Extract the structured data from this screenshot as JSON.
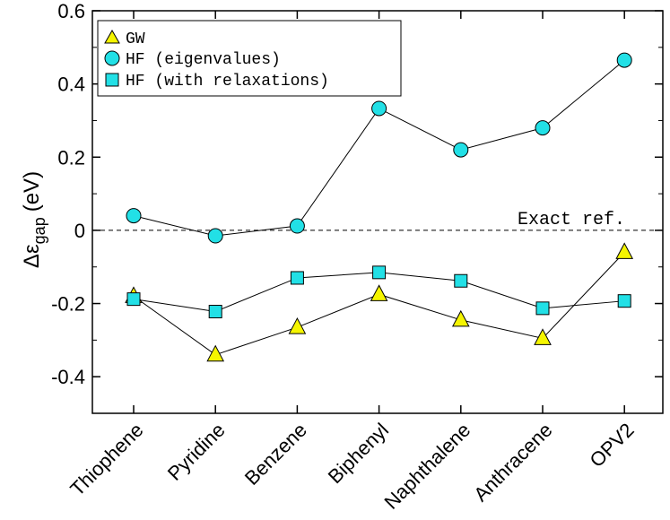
{
  "chart_data": {
    "type": "line",
    "title": "",
    "xlabel": "",
    "ylabel": "Δεgap (eV)",
    "ylabel_main": "Δε",
    "ylabel_sub": "gap",
    "ylabel_unit": "(eV)",
    "ylim": [
      -0.5,
      0.6
    ],
    "yticks": [
      -0.4,
      -0.2,
      0,
      0.2,
      0.4,
      0.6
    ],
    "ytick_labels": [
      "-0.4",
      "-0.2",
      "0",
      "0.2",
      "0.4",
      "0.6"
    ],
    "categories": [
      "Thiophene",
      "Pyridine",
      "Benzene",
      "Biphenyl",
      "Naphthalene",
      "Anthracene",
      "OPV2"
    ],
    "series": [
      {
        "name": "GW",
        "marker": "triangle",
        "color": "#f5f500",
        "values": [
          -0.18,
          -0.34,
          -0.265,
          -0.175,
          -0.245,
          -0.295,
          -0.06
        ]
      },
      {
        "name": "HF (eigenvalues)",
        "marker": "circle",
        "color": "#22e0e6",
        "values": [
          0.04,
          -0.015,
          0.012,
          0.333,
          0.22,
          0.28,
          0.465
        ]
      },
      {
        "name": "HF (with relaxations)",
        "marker": "square",
        "color": "#22e0e6",
        "values": [
          -0.188,
          -0.222,
          -0.13,
          -0.115,
          -0.138,
          -0.213,
          -0.193
        ]
      }
    ],
    "reference_line": {
      "value": 0,
      "label": "Exact ref.",
      "style": "dashed"
    },
    "legend_position": "top-left",
    "grid": false
  }
}
